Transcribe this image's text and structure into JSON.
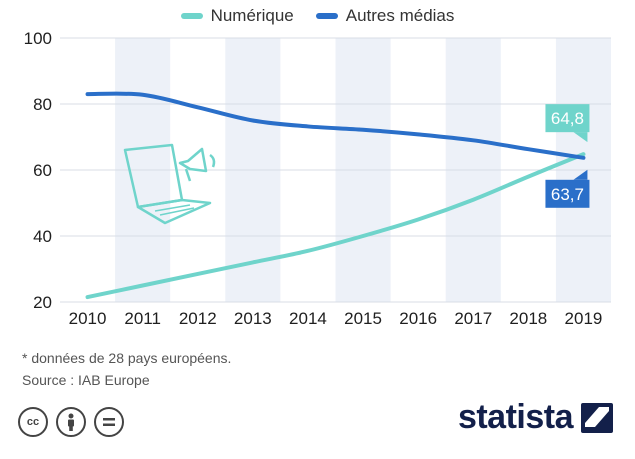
{
  "chart_data": {
    "type": "line",
    "x": [
      "2010",
      "2011",
      "2012",
      "2013",
      "2014",
      "2015",
      "2016",
      "2017",
      "2018",
      "2019"
    ],
    "series": [
      {
        "name": "Numérique",
        "color": "#6fd4cb",
        "values": [
          21.5,
          25,
          28.5,
          32,
          35.5,
          40,
          45,
          51,
          58,
          64.8
        ]
      },
      {
        "name": "Autres médias",
        "color": "#2a6fc9",
        "values": [
          83,
          82.8,
          79,
          75,
          73.2,
          72.2,
          70.8,
          69,
          66.3,
          63.7
        ]
      }
    ],
    "yticks": [
      "20",
      "40",
      "60",
      "80",
      "100"
    ],
    "ylim": [
      20,
      100
    ],
    "grid": true,
    "legend_position": "top-center",
    "annotations": [
      {
        "series": "Numérique",
        "text": "64,8"
      },
      {
        "series": "Autres médias",
        "text": "63,7"
      }
    ]
  },
  "footnote": "* données de 28 pays européens.",
  "source": "Source : IAB Europe",
  "brand": "statista",
  "license_icons": [
    "cc-icon",
    "by-icon",
    "nd-icon"
  ],
  "colors": {
    "band": "#edf1f8",
    "grid": "#d8dde6",
    "logo": "#13204a"
  }
}
